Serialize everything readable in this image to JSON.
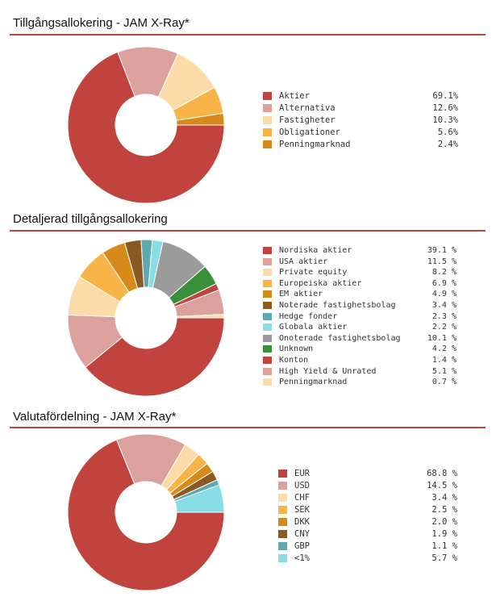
{
  "chart_data": [
    {
      "type": "pie",
      "title": "Tillgångsallokering - JAM X-Ray*",
      "series": [
        {
          "values": [
            69.1,
            12.6,
            10.3,
            5.6,
            2.4
          ],
          "labels": [
            "Aktier",
            "Alternativa",
            "Fastigheter",
            "Obligationer",
            "Penningmarknad"
          ],
          "display": [
            "69.1%",
            "12.6%",
            "10.3%",
            "5.6%",
            "2.4%"
          ],
          "colors": [
            "#c0443d",
            "#dca19d",
            "#fbdba7",
            "#f8b446",
            "#d68a1a"
          ]
        }
      ],
      "legend": "right"
    },
    {
      "type": "pie",
      "title": "Detaljerad tillgångsallokering",
      "series": [
        {
          "values": [
            39.1,
            11.5,
            8.2,
            6.9,
            4.9,
            3.4,
            2.3,
            2.2,
            10.1,
            4.2,
            1.4,
            5.1,
            0.7
          ],
          "labels": [
            "Nordiska aktier",
            "USA aktier",
            "Private equity",
            "Europeiska aktier",
            "EM aktier",
            "Noterade fastighetsbolag",
            "Hedge fonder",
            "Globala aktier",
            "Onoterade fastighetsbolag",
            "Unknown",
            "Konton",
            "High Yield & Unrated",
            "Penningmarknad"
          ],
          "display": [
            "39.1 %",
            "11.5 %",
            "8.2 %",
            "6.9 %",
            "4.9 %",
            "3.4 %",
            "2.3 %",
            "2.2 %",
            "10.1 %",
            "4.2 %",
            "1.4 %",
            "5.1 %",
            "0.7 %"
          ],
          "colors": [
            "#c0443d",
            "#dca19d",
            "#fbdba7",
            "#f8b446",
            "#d68a1a",
            "#8a5a23",
            "#5ea9b1",
            "#87dde6",
            "#9b9b9b",
            "#3a8f3a",
            "#c0443d",
            "#dca19d",
            "#fbdba7"
          ]
        }
      ],
      "legend": "right"
    },
    {
      "type": "pie",
      "title": "Valutafördelning - JAM X-Ray*",
      "series": [
        {
          "values": [
            68.8,
            14.5,
            3.4,
            2.5,
            2.0,
            1.9,
            1.1,
            5.7
          ],
          "labels": [
            "EUR",
            "USD",
            "CHF",
            "SEK",
            "DKK",
            "CNY",
            "GBP",
            "<1%"
          ],
          "display": [
            "68.8 %",
            "14.5 %",
            "3.4 %",
            "2.5 %",
            "2.0 %",
            "1.9 %",
            "1.1 %",
            "5.7 %"
          ],
          "colors": [
            "#c0443d",
            "#dca19d",
            "#fbdba7",
            "#f8b446",
            "#d68a1a",
            "#8a5a23",
            "#5ea9b1",
            "#87dde6"
          ]
        }
      ],
      "legend": "right"
    }
  ]
}
